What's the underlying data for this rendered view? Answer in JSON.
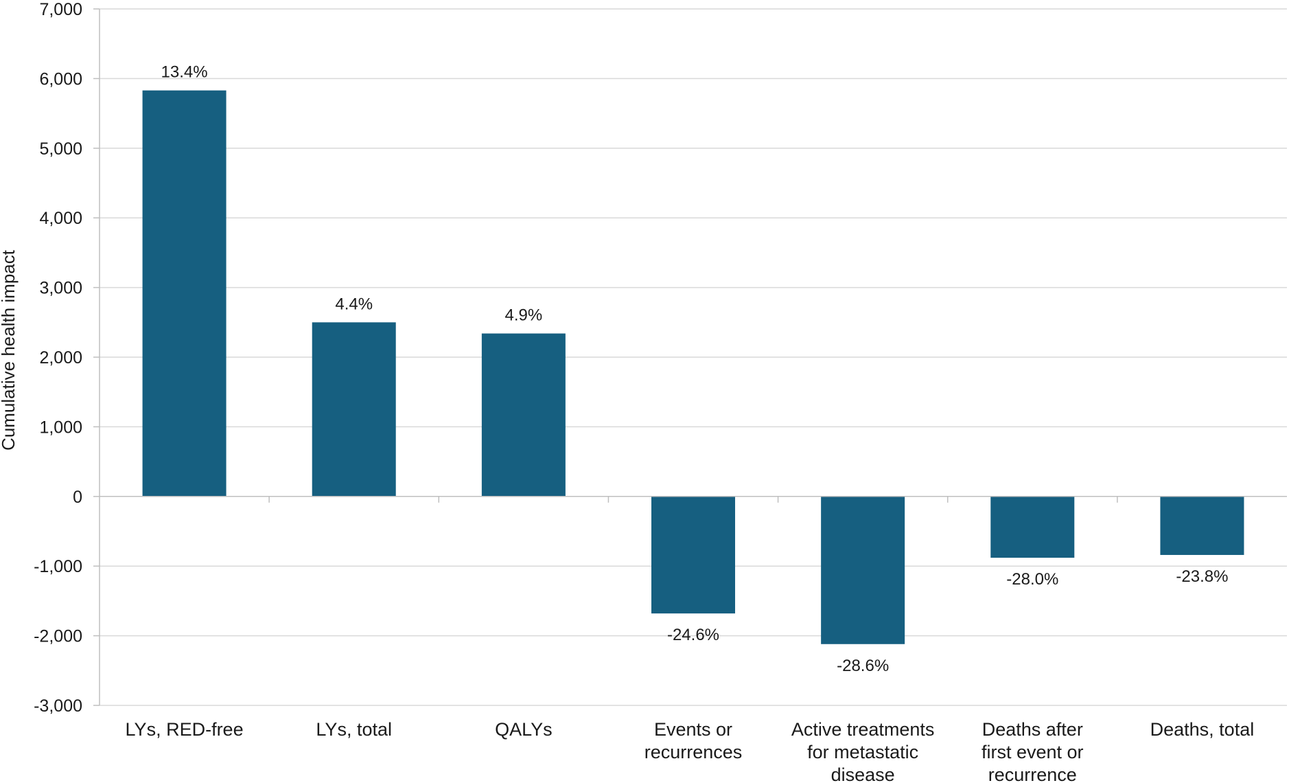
{
  "chart_data": {
    "type": "bar",
    "title": "",
    "xlabel": "",
    "ylabel": "Cumulative health impact",
    "ylim": [
      -3000,
      7000
    ],
    "yticks": [
      -3000,
      -2000,
      -1000,
      0,
      1000,
      2000,
      3000,
      4000,
      5000,
      6000,
      7000
    ],
    "ytick_labels": [
      "-3,000",
      "-2,000",
      "-1,000",
      "0",
      "1,000",
      "2,000",
      "3,000",
      "4,000",
      "5,000",
      "6,000",
      "7,000"
    ],
    "grid": true,
    "legend": "none",
    "categories": [
      [
        "LYs, RED-free"
      ],
      [
        "LYs, total"
      ],
      [
        "QALYs"
      ],
      [
        "Events or",
        "recurrences"
      ],
      [
        "Active treatments",
        "for metastatic",
        "disease"
      ],
      [
        "Deaths after",
        "first event or",
        "recurrence"
      ],
      [
        "Deaths, total"
      ]
    ],
    "values": [
      5830,
      2500,
      2340,
      -1680,
      -2120,
      -880,
      -840
    ],
    "data_labels": [
      "13.4%",
      "4.4%",
      "4.9%",
      "-24.6%",
      "-28.6%",
      "-28.0%",
      "-23.8%"
    ],
    "colors": {
      "bar": "#165f80",
      "grid": "#d9d9d9",
      "axis": "#bfbfbf"
    }
  }
}
